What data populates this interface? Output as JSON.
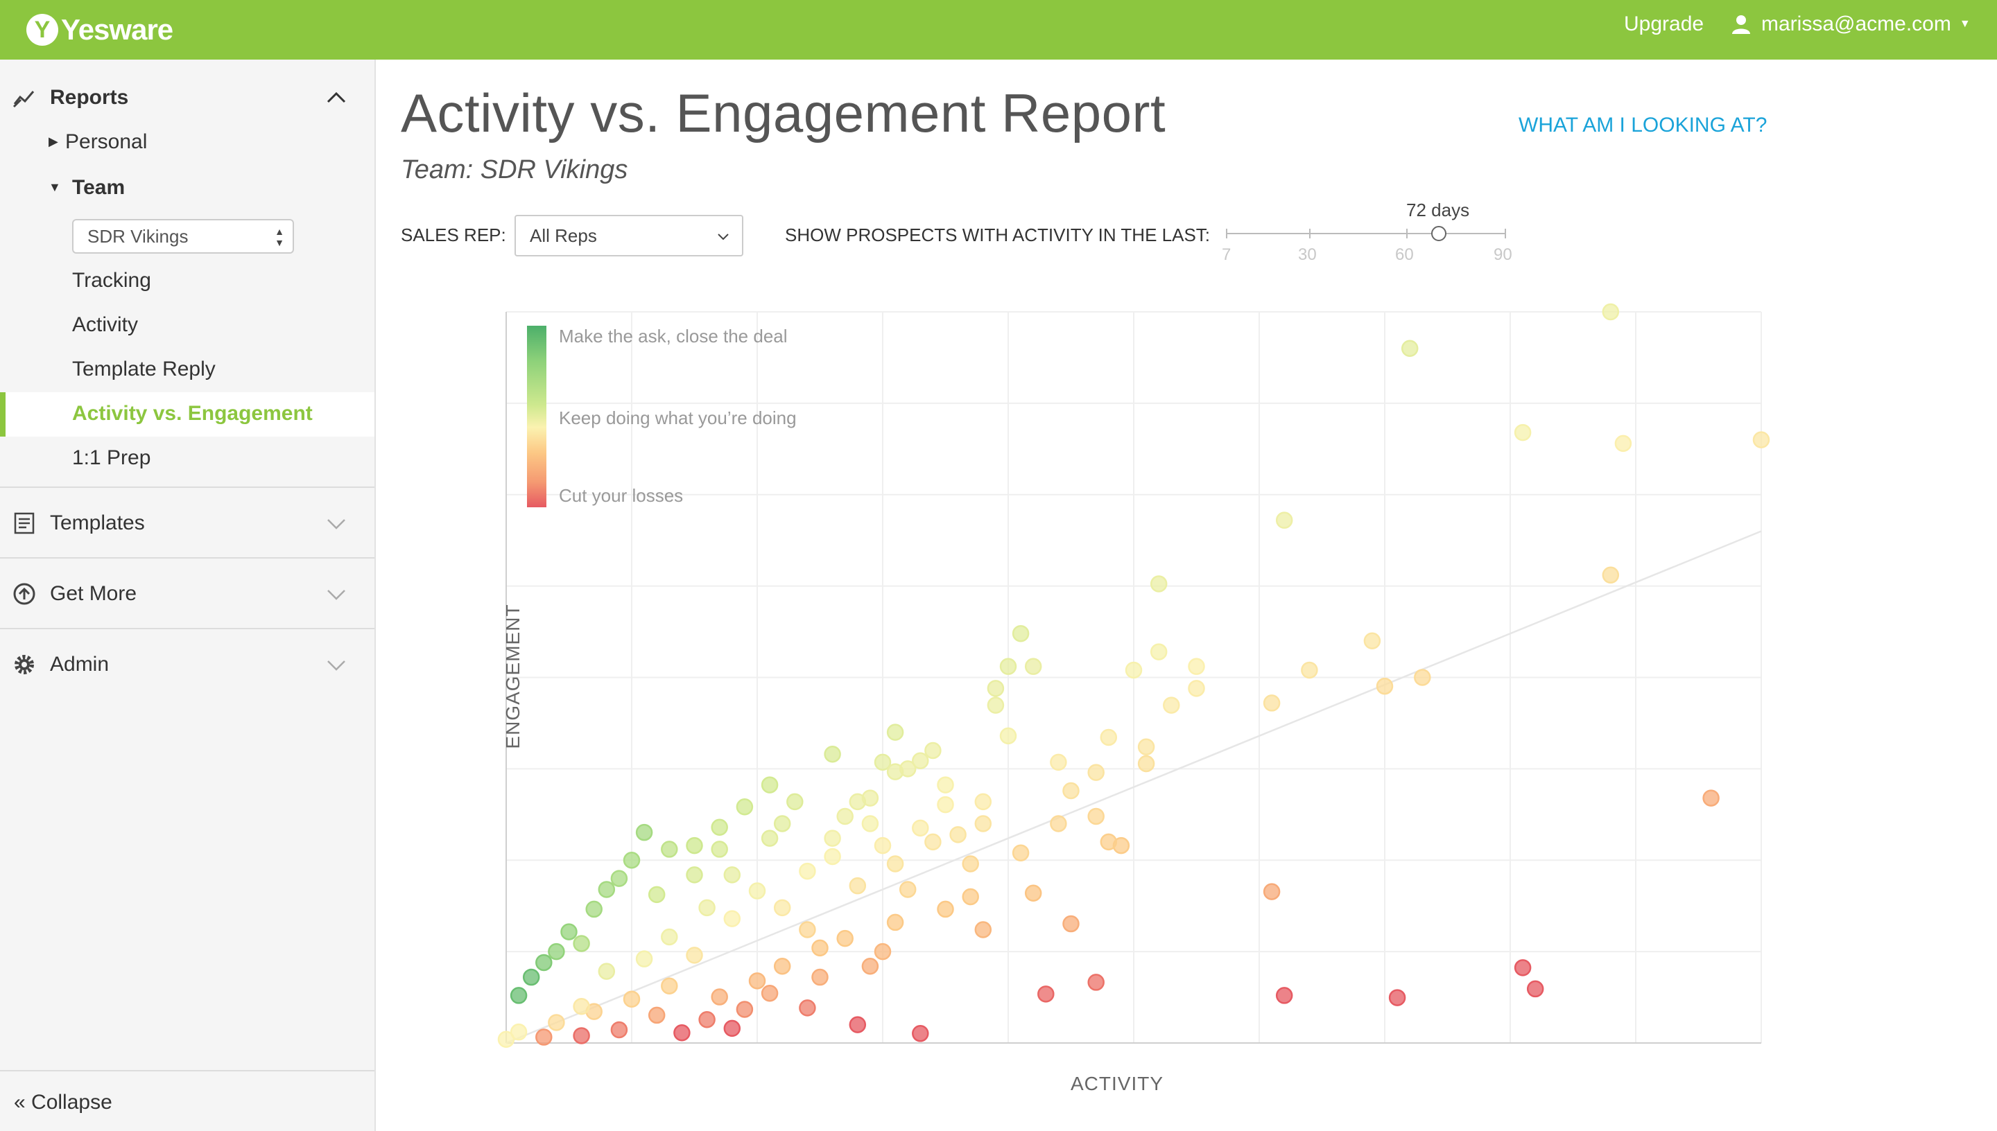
{
  "app": {
    "brand": "Yesware",
    "upgrade_label": "Upgrade",
    "user_email": "marissa@acme.com",
    "accent_color": "#8cc63f",
    "link_color": "#1aa3d9"
  },
  "sidebar": {
    "reports_label": "Reports",
    "personal_label": "Personal",
    "team_label": "Team",
    "team_select_value": "SDR Vikings",
    "items": {
      "tracking": "Tracking",
      "activity": "Activity",
      "template_reply": "Template Reply",
      "activity_vs_engagement": "Activity vs. Engagement",
      "one_on_one_prep": "1:1 Prep"
    },
    "templates_label": "Templates",
    "get_more_label": "Get More",
    "admin_label": "Admin",
    "collapse_label": "Collapse",
    "collapse_glyph": "«"
  },
  "main": {
    "title": "Activity vs. Engagement Report",
    "subtitle": "Team: SDR Vikings",
    "help_link": "WHAT AM I LOOKING AT?",
    "sales_rep_label": "SALES REP:",
    "sales_rep_value": "All Reps",
    "days_filter_label": "SHOW PROSPECTS WITH ACTIVITY IN THE LAST:",
    "slider": {
      "value_label": "72 days",
      "value": 72,
      "min": 7,
      "max": 90,
      "ticks": [
        "7",
        "30",
        "60",
        "90"
      ]
    }
  },
  "chart_data": {
    "type": "scatter",
    "xlabel": "ACTIVITY",
    "ylabel": "ENGAGEMENT",
    "grid": true,
    "legend": [
      "Make the ask, close the deal",
      "Keep doing what you’re doing",
      "Cut your losses"
    ],
    "legend_placement": "top-left",
    "color_scale": [
      "#4caf6a",
      "#8fd27a",
      "#cfe98f",
      "#fbf2b0",
      "#fcc885",
      "#f59a72",
      "#e65a62"
    ],
    "xlim": [
      0,
      100
    ],
    "ylim": [
      0,
      100
    ],
    "reference_line": [
      [
        0,
        0
      ],
      [
        100,
        70
      ]
    ],
    "points": [
      [
        88,
        100
      ],
      [
        72,
        95
      ],
      [
        81,
        83.5
      ],
      [
        89,
        82
      ],
      [
        100,
        82.5
      ],
      [
        62,
        71.5
      ],
      [
        88,
        64
      ],
      [
        52,
        62.8
      ],
      [
        41,
        56
      ],
      [
        52,
        53.5
      ],
      [
        50,
        51
      ],
      [
        55,
        51.5
      ],
      [
        55,
        48.5
      ],
      [
        69,
        55
      ],
      [
        70,
        48.8
      ],
      [
        64,
        51
      ],
      [
        73,
        50
      ],
      [
        61,
        46.5
      ],
      [
        53,
        46.2
      ],
      [
        40,
        51.5
      ],
      [
        42,
        51.5
      ],
      [
        39,
        48.5
      ],
      [
        39,
        46.2
      ],
      [
        40,
        42
      ],
      [
        48,
        41.8
      ],
      [
        51,
        40.5
      ],
      [
        51,
        38.2
      ],
      [
        96,
        33.5
      ],
      [
        61,
        20.7
      ],
      [
        37,
        20
      ],
      [
        45,
        16.3
      ],
      [
        38,
        15.5
      ],
      [
        47,
        8.3
      ],
      [
        43,
        6.7
      ],
      [
        71,
        6.2
      ],
      [
        81,
        10.3
      ],
      [
        82,
        7.4
      ],
      [
        62,
        6.5
      ],
      [
        31,
        24.5
      ],
      [
        35,
        18.3
      ],
      [
        31,
        16.5
      ],
      [
        30,
        12.5
      ],
      [
        25,
        13
      ],
      [
        22,
        10.5
      ],
      [
        20,
        8.5
      ],
      [
        17,
        6.3
      ],
      [
        13,
        7.8
      ],
      [
        10,
        6
      ],
      [
        7,
        4.3
      ],
      [
        4,
        2.8
      ],
      [
        1,
        1.5
      ],
      [
        0,
        0.5
      ],
      [
        24,
        4.8
      ],
      [
        28,
        2.5
      ],
      [
        33,
        1.3
      ],
      [
        18,
        2
      ],
      [
        14,
        1.4
      ],
      [
        9,
        1.8
      ],
      [
        6,
        1
      ],
      [
        3,
        0.8
      ],
      [
        15,
        23
      ],
      [
        17,
        26.5
      ],
      [
        18,
        23
      ],
      [
        21,
        28
      ],
      [
        22,
        30
      ],
      [
        24,
        23.5
      ],
      [
        26,
        25.5
      ],
      [
        26,
        28
      ],
      [
        27,
        31
      ],
      [
        29,
        33.5
      ],
      [
        29,
        30
      ],
      [
        30,
        27
      ],
      [
        30,
        38.4
      ],
      [
        31,
        37.1
      ],
      [
        33,
        38.6
      ],
      [
        34,
        40
      ],
      [
        35,
        35.3
      ],
      [
        35,
        32.6
      ],
      [
        33,
        29.4
      ],
      [
        26,
        39.5
      ],
      [
        31,
        42.5
      ],
      [
        32,
        37.5
      ],
      [
        28,
        33
      ],
      [
        23,
        33
      ],
      [
        21,
        35.3
      ],
      [
        17,
        29.5
      ],
      [
        19,
        32.3
      ],
      [
        15,
        27
      ],
      [
        13,
        26.5
      ],
      [
        11,
        28.8
      ],
      [
        9,
        22.5
      ],
      [
        12,
        20.3
      ],
      [
        10,
        25
      ],
      [
        8,
        21
      ],
      [
        7,
        18.3
      ],
      [
        5,
        15.2
      ],
      [
        3,
        11
      ],
      [
        6,
        13.6
      ],
      [
        4,
        12.5
      ],
      [
        2,
        9
      ],
      [
        1,
        6.5
      ],
      [
        16,
        18.5
      ],
      [
        18,
        17
      ],
      [
        20,
        20.8
      ],
      [
        22,
        18.5
      ],
      [
        24,
        15.5
      ],
      [
        27,
        14.3
      ],
      [
        29,
        10.5
      ],
      [
        25,
        9
      ],
      [
        21,
        6.8
      ],
      [
        19,
        4.6
      ],
      [
        16,
        3.2
      ],
      [
        12,
        3.8
      ],
      [
        11,
        11.5
      ],
      [
        13,
        14.5
      ],
      [
        15,
        12
      ],
      [
        8,
        9.8
      ],
      [
        6,
        5
      ],
      [
        28,
        21.5
      ],
      [
        32,
        21
      ],
      [
        34,
        27.5
      ],
      [
        37,
        24.5
      ],
      [
        36,
        28.5
      ],
      [
        41,
        26
      ],
      [
        44,
        30
      ],
      [
        45,
        34.5
      ],
      [
        47,
        37
      ],
      [
        44,
        38.4
      ],
      [
        38,
        33
      ],
      [
        38,
        30
      ],
      [
        47,
        31
      ],
      [
        49,
        27
      ],
      [
        48,
        27.5
      ],
      [
        42,
        20.5
      ]
    ]
  }
}
